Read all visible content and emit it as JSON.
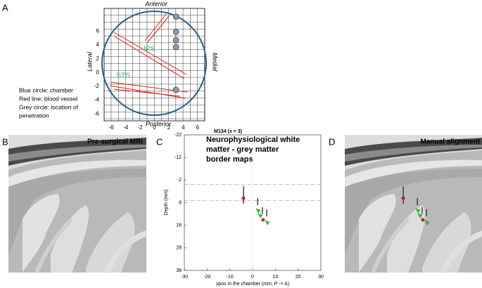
{
  "panel_letters": [
    "A",
    "B",
    "C",
    "D"
  ],
  "mri_titles": [
    "Pre-surgical MRI",
    "Manual alignment"
  ],
  "chart_data": [
    {
      "type": "scatter",
      "annotations": {
        "top": "Anterior",
        "bottom": "Posterior",
        "left": "Lateral",
        "right": "Medial",
        "sulci": [
          "IPS",
          "STS"
        ]
      },
      "legend_text": [
        "Blue circle: chamber",
        "Red line: blood vessel",
        "Grey circle: location of",
        "penetration"
      ],
      "x": [
        3,
        3,
        3,
        3,
        3
      ],
      "y": [
        8.1,
        5.9,
        4.7,
        3.7,
        -2.5
      ],
      "color": "#8c9aa6",
      "xlim": [
        -7,
        7
      ],
      "ylim": [
        -7,
        9.3
      ],
      "xticks": [
        -6,
        -4,
        -2,
        0,
        2,
        4,
        6
      ],
      "yticks": [
        6,
        4,
        2,
        0,
        -2,
        -4,
        -6
      ]
    },
    {
      "type": "scatter",
      "title": "M134 (x = 3)",
      "annotation": [
        "Neurophysiological white",
        "matter - grey matter",
        "border maps"
      ],
      "xlabel": "ypos in the chamber (mm, P -> A)",
      "ylabel": "Depth (mm)",
      "xlim": [
        -30,
        30
      ],
      "ylim": [
        -22,
        38
      ],
      "yreverse": true,
      "xticks": [
        -30,
        -20,
        -10,
        0,
        10,
        20,
        30
      ],
      "yticks": [
        -22,
        -12,
        -2,
        8,
        18,
        28,
        38
      ],
      "hlines": [
        0,
        7
      ],
      "vlines": [
        0
      ],
      "ranges": {
        "color": "#111111",
        "x": [
          -4,
          2.2,
          4.3,
          6.2
        ],
        "low": [
          0.7,
          6,
          10,
          11
        ],
        "high": [
          8.5,
          9.1,
          13,
          14
        ]
      },
      "series": [
        {
          "color": "#e0201b",
          "marker": "circle",
          "x": [
            -4,
            4.6
          ],
          "y": [
            6,
            15.6
          ]
        },
        {
          "color": "#22dd22",
          "marker": "triangle",
          "x": [
            2.5,
            3.4,
            6.5
          ],
          "y": [
            11.6,
            13.8,
            16.9
          ]
        }
      ]
    }
  ]
}
